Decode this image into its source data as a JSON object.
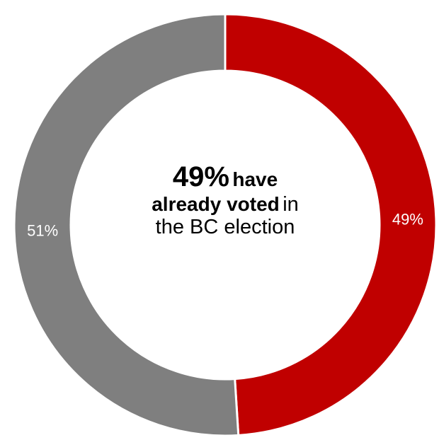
{
  "chart_data": {
    "type": "pie",
    "style": "donut",
    "slices": [
      {
        "label": "49%",
        "value": 49,
        "color": "#C00000"
      },
      {
        "label": "51%",
        "value": 51,
        "color": "#7F7F7F"
      }
    ],
    "center_text": {
      "pct": "49%",
      "have": "have",
      "already_voted": "already voted",
      "in": "in",
      "rest": "the BC election"
    }
  }
}
